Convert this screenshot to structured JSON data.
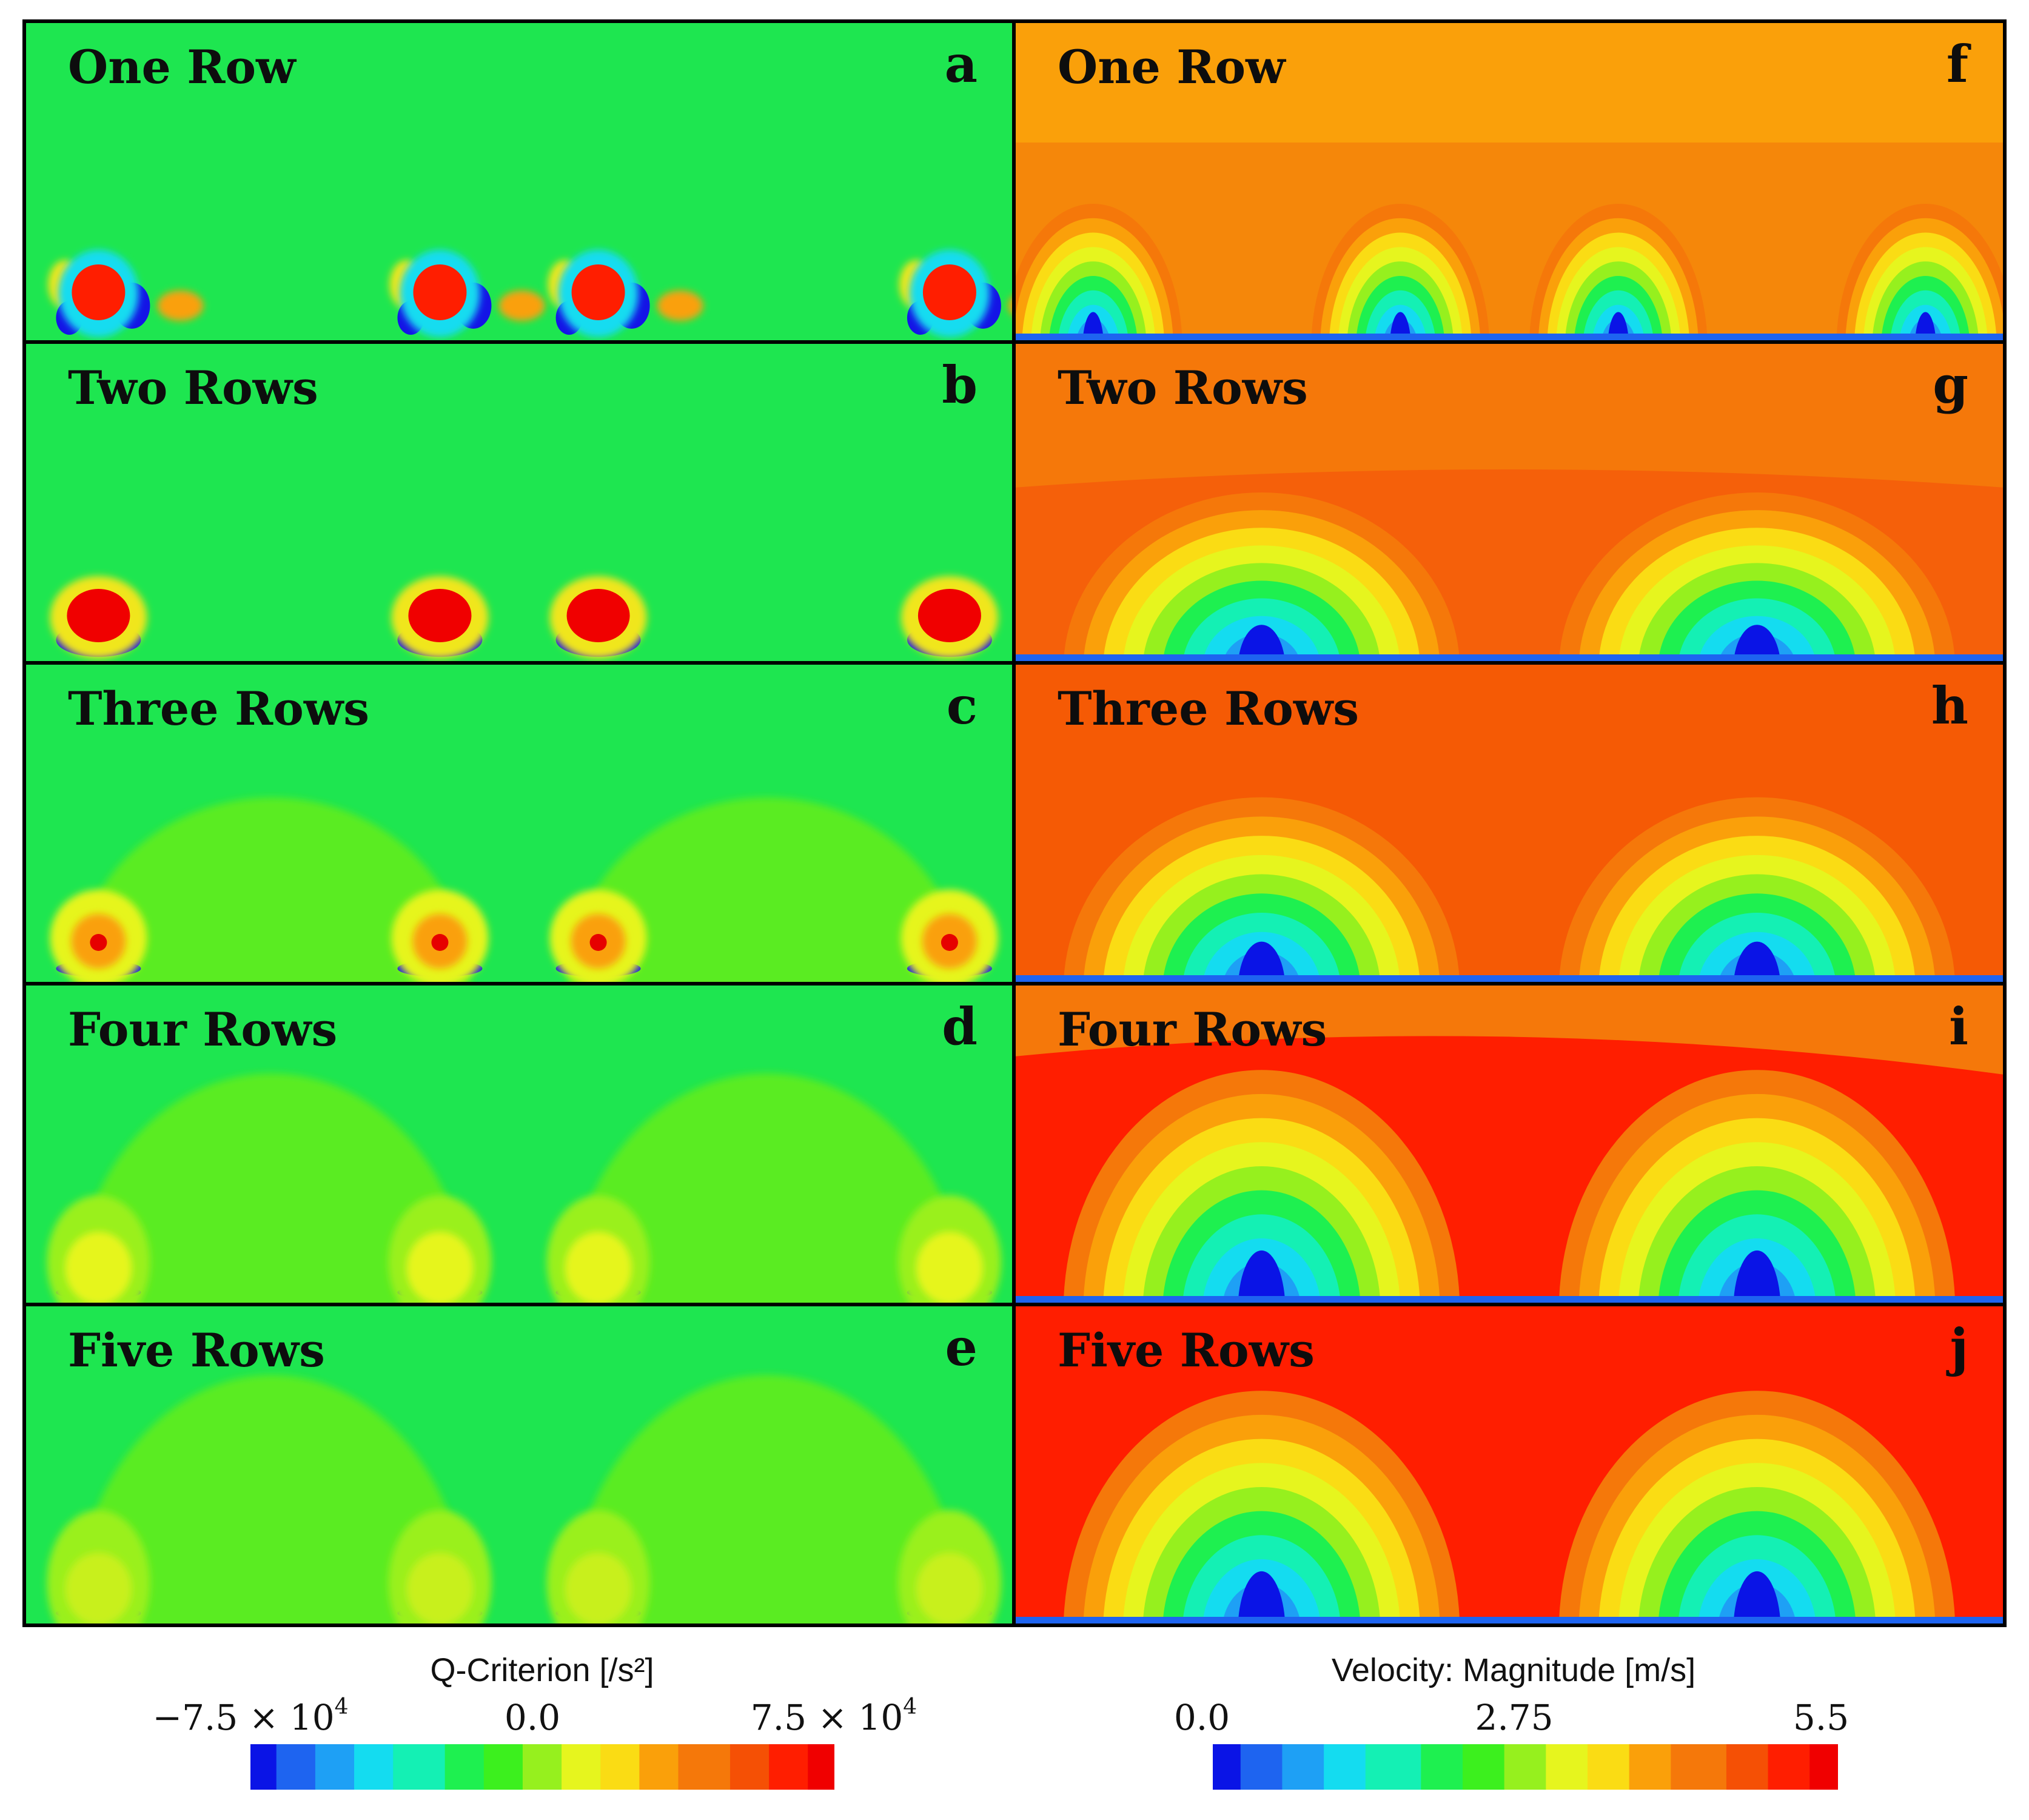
{
  "figure": {
    "panels": [
      {
        "letter": "a",
        "label": "One Row",
        "field": "q",
        "rows": 1
      },
      {
        "letter": "b",
        "label": "Two Rows",
        "field": "q",
        "rows": 2
      },
      {
        "letter": "c",
        "label": "Three Rows",
        "field": "q",
        "rows": 3
      },
      {
        "letter": "d",
        "label": "Four Rows",
        "field": "q",
        "rows": 4
      },
      {
        "letter": "e",
        "label": "Five Rows",
        "field": "q",
        "rows": 5
      },
      {
        "letter": "f",
        "label": "One Row",
        "field": "v",
        "rows": 1
      },
      {
        "letter": "g",
        "label": "Two Rows",
        "field": "v",
        "rows": 2
      },
      {
        "letter": "h",
        "label": "Three Rows",
        "field": "v",
        "rows": 3
      },
      {
        "letter": "i",
        "label": "Four Rows",
        "field": "v",
        "rows": 4
      },
      {
        "letter": "j",
        "label": "Five Rows",
        "field": "v",
        "rows": 5
      }
    ],
    "colorbars": [
      {
        "id": "q",
        "title": "Q-Criterion [/s²]",
        "ticks": [
          {
            "mantissa": "−7.5 × 10",
            "exp": "4"
          },
          {
            "mantissa": "0.0",
            "exp": ""
          },
          {
            "mantissa": "7.5 × 10",
            "exp": "4"
          }
        ],
        "range": [
          -75000,
          75000
        ]
      },
      {
        "id": "v",
        "title": "Velocity: Magnitude [m/s]",
        "ticks": [
          {
            "mantissa": "0.0",
            "exp": ""
          },
          {
            "mantissa": "2.75",
            "exp": ""
          },
          {
            "mantissa": "5.5",
            "exp": ""
          }
        ],
        "range": [
          0,
          5.5
        ]
      }
    ],
    "colormap": [
      "#0a14e6",
      "#1e64f0",
      "#1ea0f5",
      "#14dcf0",
      "#14f0b4",
      "#1ef050",
      "#3cf01e",
      "#96f01e",
      "#e6f51e",
      "#fadc14",
      "#faa00a",
      "#f5780a",
      "#f55005",
      "#ff1e00",
      "#f00000"
    ]
  }
}
